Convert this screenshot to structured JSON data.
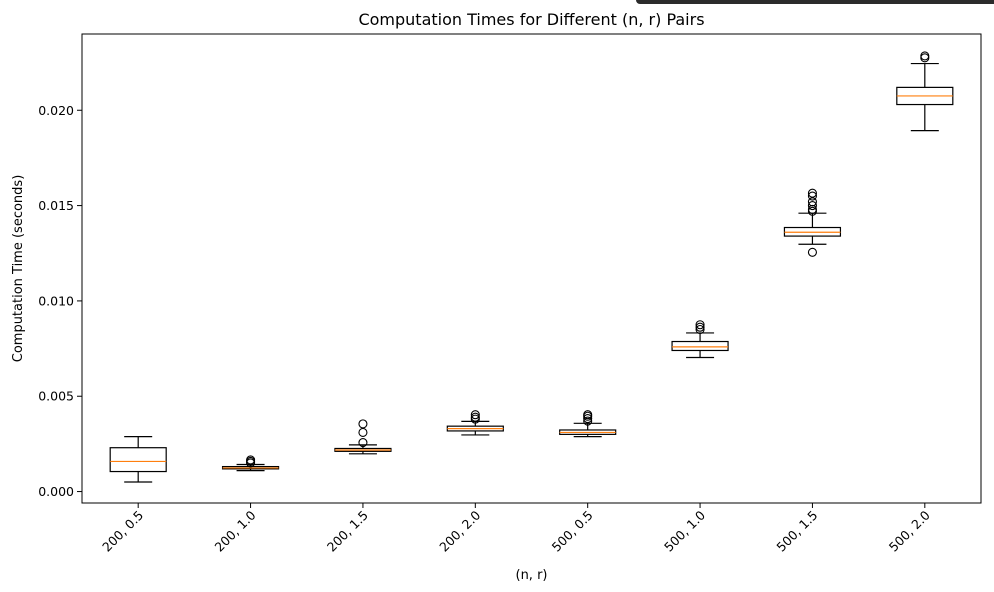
{
  "chart_data": {
    "type": "box",
    "title": "Computation Times for Different (n, r) Pairs",
    "xlabel": "(n, r)",
    "ylabel": "Computation Time (seconds)",
    "categories": [
      "200, 0.5",
      "200, 1.0",
      "200, 1.5",
      "200, 2.0",
      "500, 0.5",
      "500, 1.0",
      "500, 1.5",
      "500, 2.0"
    ],
    "ylim": [
      -0.0006,
      0.024
    ],
    "yticks": [
      0.0,
      0.005,
      0.01,
      0.015,
      0.02
    ],
    "ytick_labels": [
      "0.000",
      "0.005",
      "0.010",
      "0.015",
      "0.020"
    ],
    "boxes": [
      {
        "whisker_low": 0.0005,
        "q1": 0.00105,
        "median": 0.00158,
        "q3": 0.0023,
        "whisker_high": 0.00288,
        "outliers": []
      },
      {
        "whisker_low": 0.0011,
        "q1": 0.00119,
        "median": 0.00124,
        "q3": 0.00131,
        "whisker_high": 0.00142,
        "outliers": [
          0.0015,
          0.00158,
          0.00166
        ]
      },
      {
        "whisker_low": 0.00198,
        "q1": 0.00211,
        "median": 0.00218,
        "q3": 0.00226,
        "whisker_high": 0.00245,
        "outliers": [
          0.00257,
          0.0031,
          0.00355
        ]
      },
      {
        "whisker_low": 0.00297,
        "q1": 0.00318,
        "median": 0.0033,
        "q3": 0.00343,
        "whisker_high": 0.00368,
        "outliers": [
          0.0038,
          0.0039,
          0.00403
        ]
      },
      {
        "whisker_low": 0.00288,
        "q1": 0.003,
        "median": 0.0031,
        "q3": 0.00323,
        "whisker_high": 0.00358,
        "outliers": [
          0.0037,
          0.00383,
          0.00395,
          0.00403
        ]
      },
      {
        "whisker_low": 0.00703,
        "q1": 0.0074,
        "median": 0.00759,
        "q3": 0.00787,
        "whisker_high": 0.00832,
        "outliers": [
          0.0085,
          0.00862,
          0.00875
        ]
      },
      {
        "whisker_low": 0.01297,
        "q1": 0.0134,
        "median": 0.0136,
        "q3": 0.01385,
        "whisker_high": 0.0146,
        "outliers": [
          0.01255,
          0.0147,
          0.0148,
          0.015,
          0.0152,
          0.0155,
          0.01565
        ]
      },
      {
        "whisker_low": 0.01893,
        "q1": 0.0203,
        "median": 0.02075,
        "q3": 0.0212,
        "whisker_high": 0.02245,
        "outliers": [
          0.02275,
          0.02285
        ]
      }
    ],
    "colors": {
      "box": "#000000",
      "median": "#ff7f0e",
      "background": "#ffffff"
    },
    "grid": false,
    "legend": null
  }
}
